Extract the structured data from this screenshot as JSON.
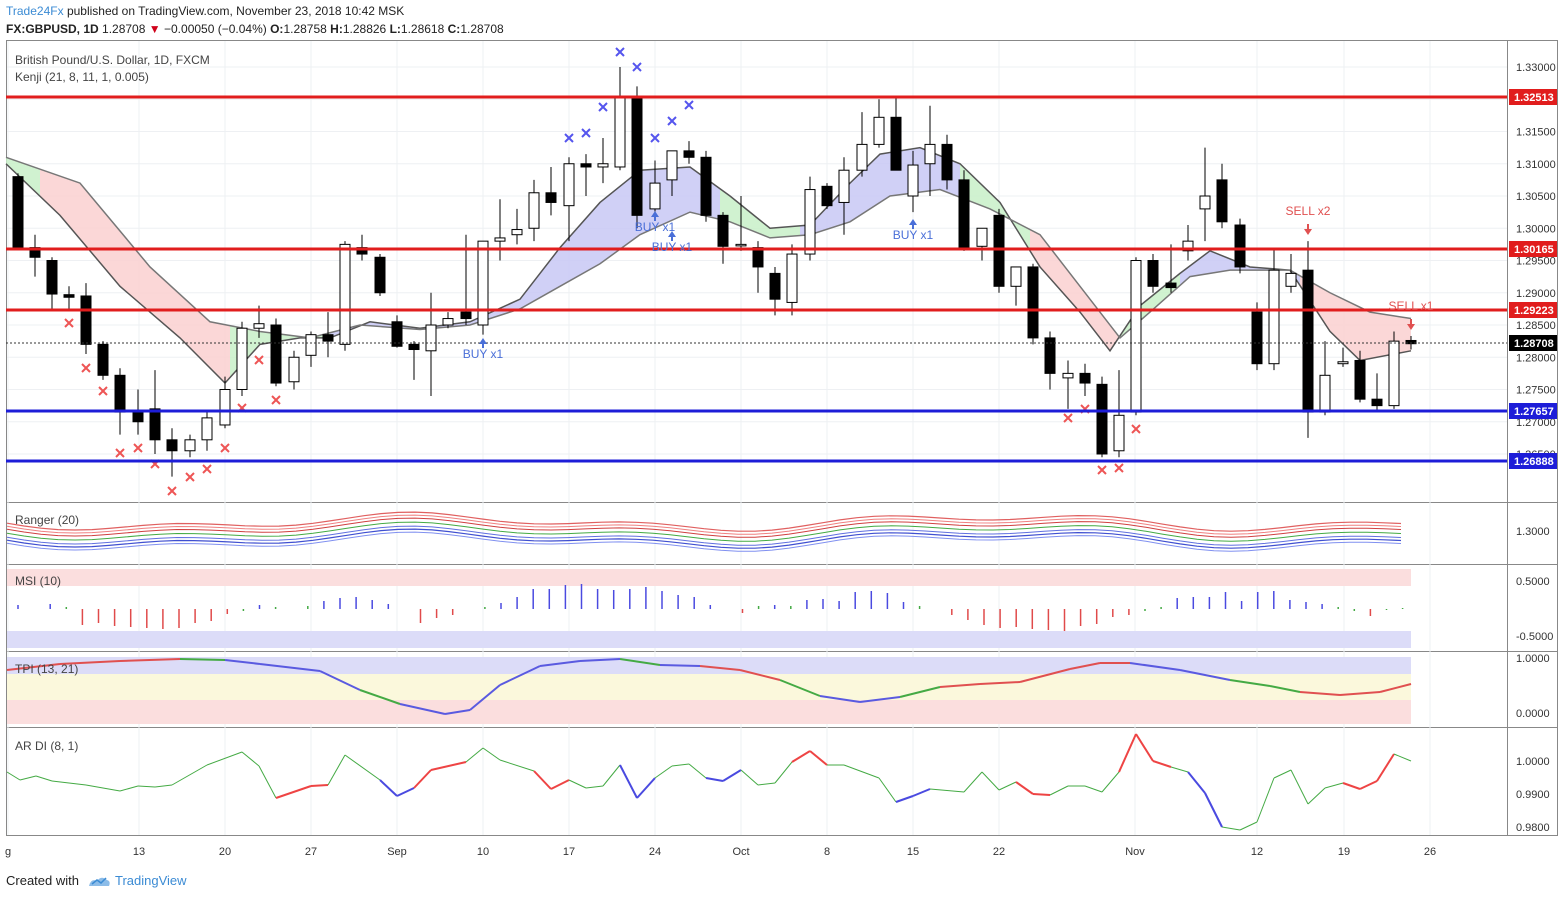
{
  "header": {
    "publisher": "Trade24Fx",
    "published_text": "published on TradingView.com, November 23, 2018 10:42 MSK",
    "symbol": "FX:GBPUSD, 1D",
    "last": "1.28708",
    "change": "−0.00050 (−0.04%)",
    "o_label": "O:",
    "o": "1.28758",
    "h_label": "H:",
    "h": "1.28826",
    "l_label": "L:",
    "l": "1.28618",
    "c_label": "C:",
    "c": "1.28708"
  },
  "main_pane": {
    "title": "British Pound/U.S. Dollar, 1D, FXCM",
    "indicator": "Kenji (21, 8, 11, 1, 0.005)",
    "y_ticks": [
      "1.33000",
      "1.32000",
      "1.31500",
      "1.31000",
      "1.30500",
      "1.30000",
      "1.29500",
      "1.29000",
      "1.28500",
      "1.28000",
      "1.27500",
      "1.27000",
      "1.26500"
    ],
    "price_tags": [
      {
        "label": "1.32513",
        "color": "#e11d1d"
      },
      {
        "label": "1.30165",
        "color": "#e11d1d"
      },
      {
        "label": "1.29223",
        "color": "#e11d1d"
      },
      {
        "label": "1.28708",
        "color": "#000000"
      },
      {
        "label": "1.27657",
        "color": "#1d1dd8"
      },
      {
        "label": "1.26888",
        "color": "#1d1dd8"
      }
    ],
    "signals": [
      {
        "text": "BUY x1",
        "color": "#4a6fd8"
      },
      {
        "text": "BUY x1",
        "color": "#4a6fd8"
      },
      {
        "text": "BUY x1",
        "color": "#4a6fd8"
      },
      {
        "text": "BUY x1",
        "color": "#4a6fd8"
      },
      {
        "text": "SELL x2",
        "color": "#e05050"
      },
      {
        "text": "SELL x1",
        "color": "#e05050"
      }
    ]
  },
  "panes": {
    "ranger": {
      "title": "Ranger (20)",
      "tick": "1.3000"
    },
    "msi": {
      "title": "MSI (10)",
      "ticks": [
        "0.5000",
        "-0.5000"
      ]
    },
    "tpi": {
      "title": "TPI (13, 21)",
      "ticks": [
        "1.0000",
        "0.0000"
      ]
    },
    "ardi": {
      "title": "AR DI (8, 1)",
      "ticks": [
        "1.0000",
        "0.9900",
        "0.9800"
      ]
    }
  },
  "x_axis": [
    "g",
    "13",
    "20",
    "27",
    "Sep",
    "10",
    "17",
    "24",
    "Oct",
    "8",
    "15",
    "22",
    "Nov",
    "12",
    "19",
    "26"
  ],
  "footer": {
    "created_with": "Created with",
    "brand": "TradingView"
  },
  "colors": {
    "resistance": "#e11d1d",
    "support": "#1d1dd8",
    "bull_cloud": "#c8f0c8",
    "bear_cloud": "#fad0d0",
    "blue_cloud": "#c8c8f5"
  }
}
